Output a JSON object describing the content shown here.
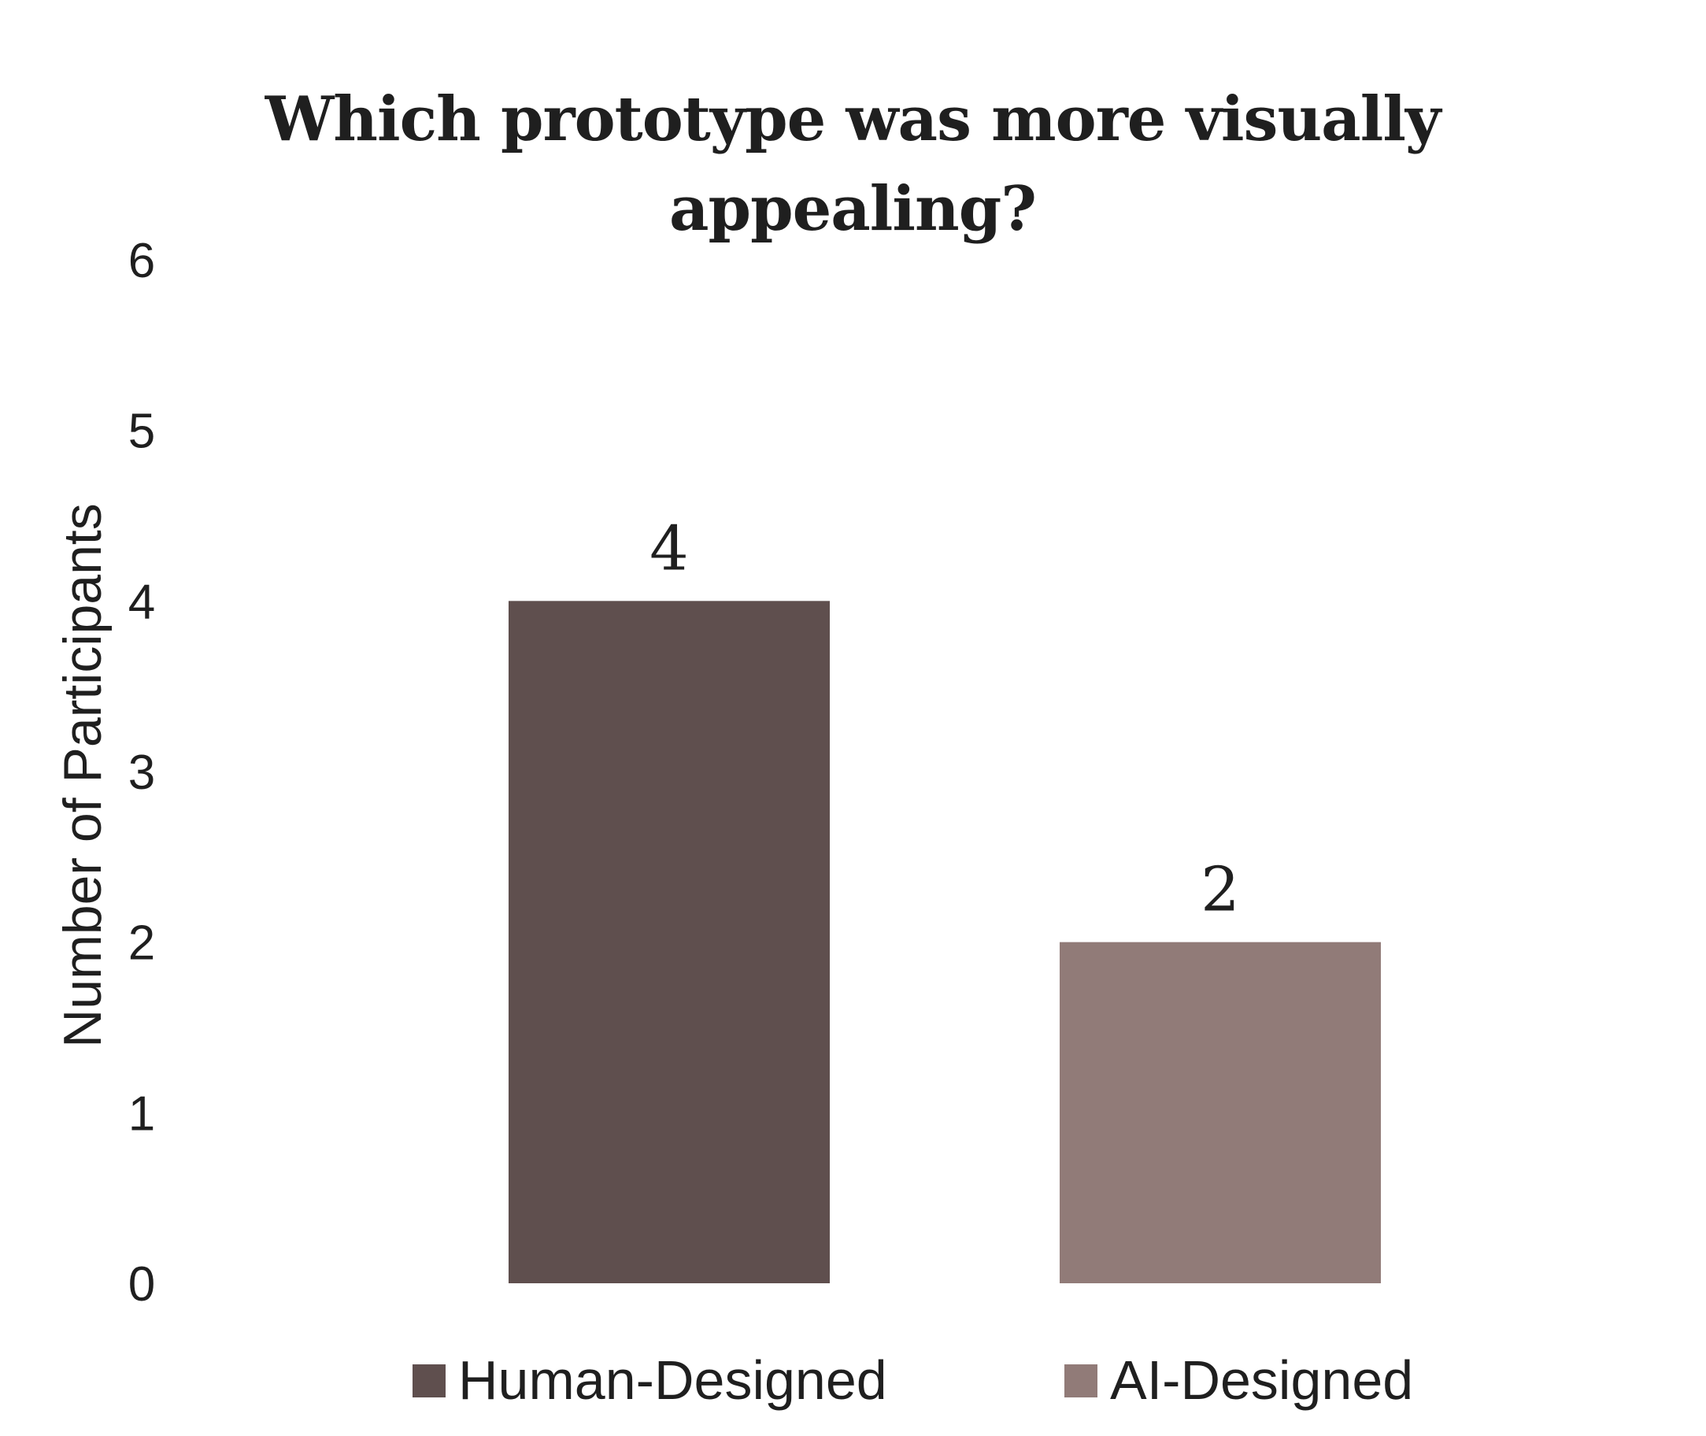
{
  "chart_data": {
    "type": "bar",
    "title_lines": [
      "Which prototype was more visually",
      "appealing?"
    ],
    "xlabel": "",
    "ylabel": "Number of Participants",
    "ylim": [
      0,
      6
    ],
    "yticks": [
      "0",
      "1",
      "2",
      "3",
      "4",
      "5",
      "6"
    ],
    "grid": false,
    "legend_position": "bottom",
    "categories": [
      "Human-Designed",
      "AI-Designed"
    ],
    "values": [
      4,
      2
    ],
    "data_labels": [
      "4",
      "2"
    ],
    "colors": [
      "#5f4f4e",
      "#917b78"
    ]
  }
}
